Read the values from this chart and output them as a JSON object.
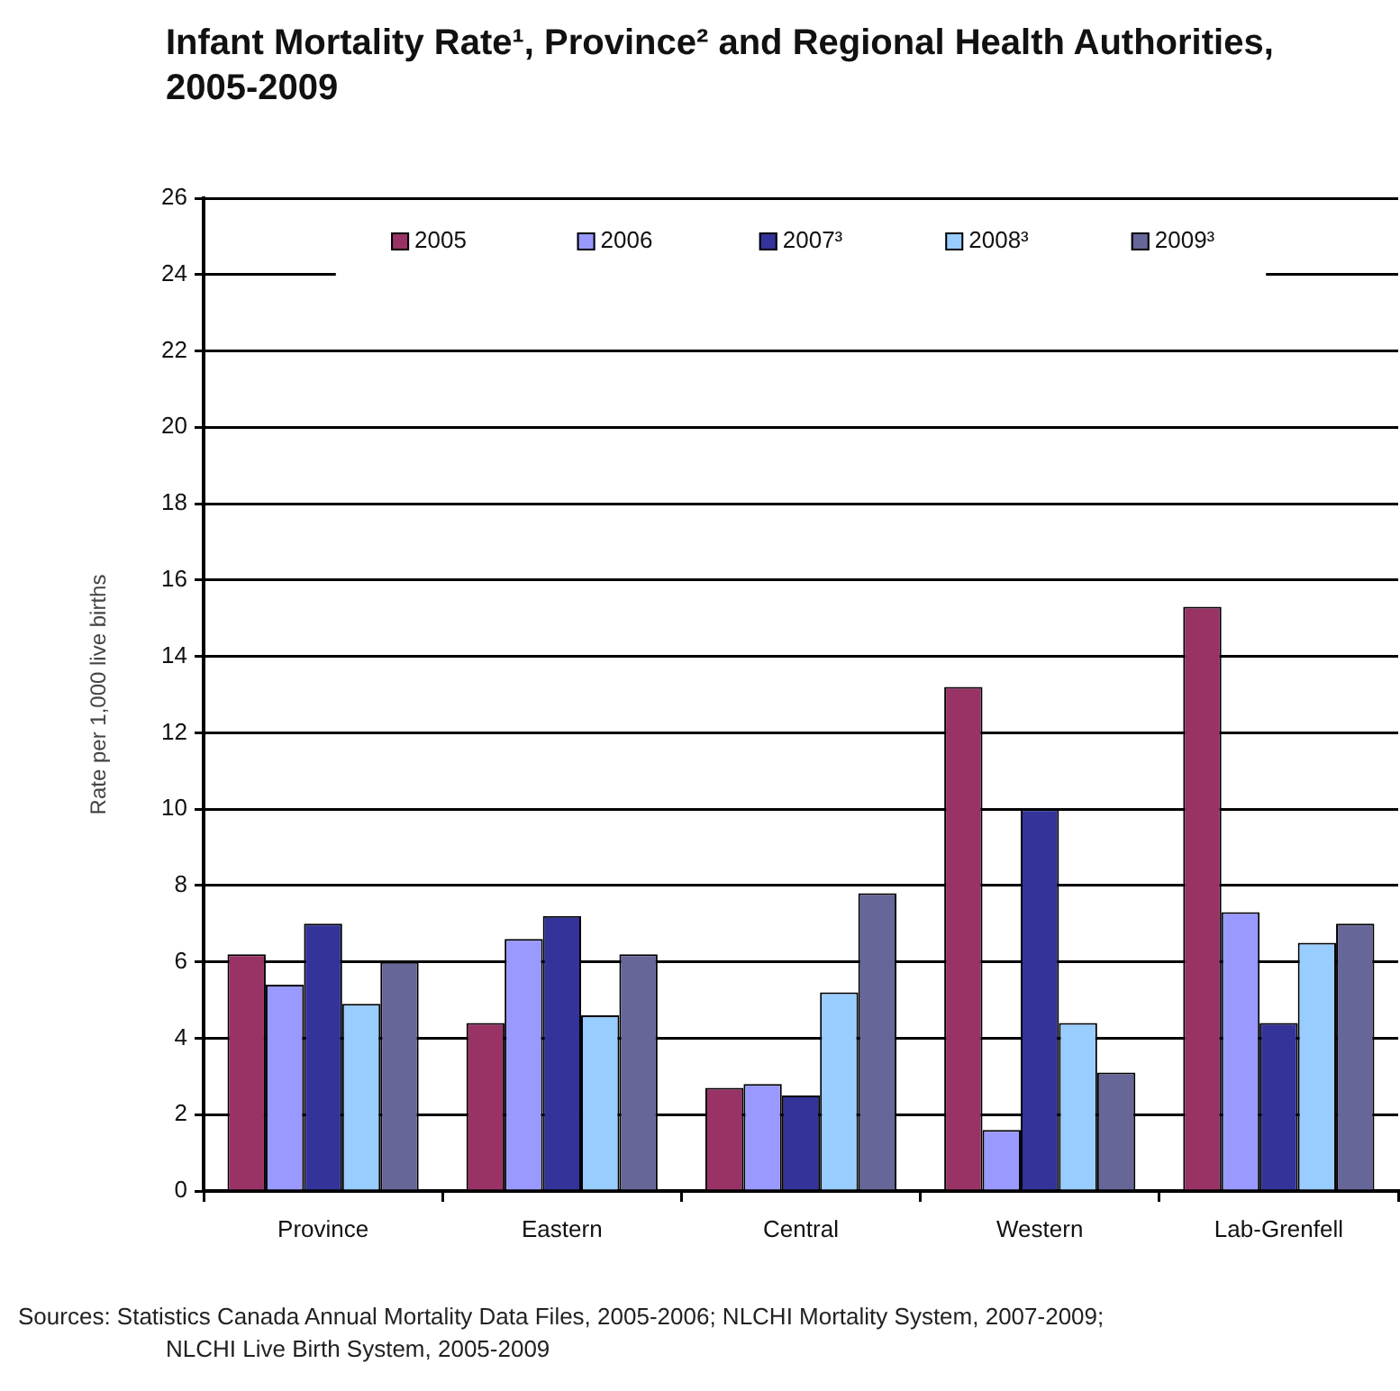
{
  "chart_data": {
    "type": "bar",
    "title": "Infant Mortality Rate¹, Province² and Regional Health Authorities, 2005-2009",
    "ylabel": "Rate per 1,000 live births",
    "categories": [
      "Province",
      "Eastern",
      "Central",
      "Western",
      "Lab-Grenfell"
    ],
    "series": [
      {
        "name": "2005",
        "color": "#993366",
        "values": [
          6.2,
          4.4,
          2.7,
          13.2,
          15.3
        ]
      },
      {
        "name": "2006",
        "color": "#9999ff",
        "values": [
          5.4,
          6.6,
          2.8,
          1.6,
          7.3
        ]
      },
      {
        "name": "2007³",
        "color": "#333399",
        "values": [
          7.0,
          7.2,
          2.5,
          10.0,
          4.4
        ]
      },
      {
        "name": "2008³",
        "color": "#99ccff",
        "values": [
          4.9,
          4.6,
          5.2,
          4.4,
          6.5
        ]
      },
      {
        "name": "2009³",
        "color": "#666699",
        "values": [
          6.0,
          6.2,
          7.8,
          3.1,
          7.0
        ]
      }
    ],
    "ylim": [
      0,
      26
    ],
    "yticks": [
      0,
      2,
      4,
      6,
      8,
      10,
      12,
      14,
      16,
      18,
      20,
      22,
      24,
      26
    ],
    "grid": "y",
    "legend": "top",
    "annotations": [
      "Sources: Statistics Canada Annual Mortality Data Files, 2005-2006; NLCHI Mortality System, 2007-2009; NLCHI Live Birth System, 2005-2009"
    ]
  }
}
